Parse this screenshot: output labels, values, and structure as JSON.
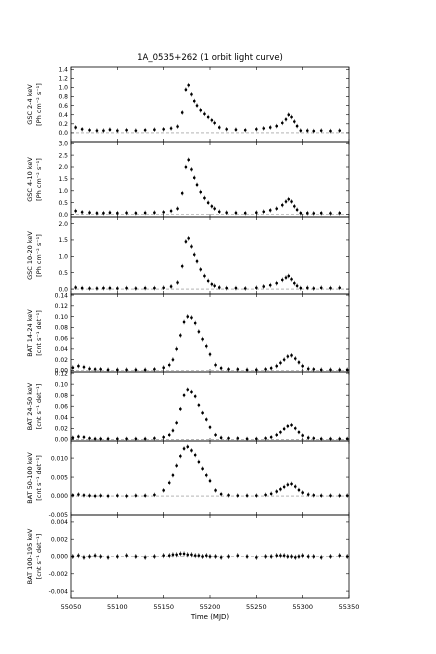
{
  "figure": {
    "title": "1A_0535+262 (1 orbit light curve)",
    "xlabel": "Time (MJD)",
    "xlim": [
      55050,
      55350
    ],
    "xticks": [
      "55050",
      "55100",
      "55150",
      "55200",
      "55250",
      "55300",
      "55350"
    ]
  },
  "chart_data": [
    {
      "type": "scatter",
      "ylabel": [
        "GSC 2-4 keV",
        "[Ph cm⁻² s⁻¹]"
      ],
      "ylim": [
        -0.2,
        1.45
      ],
      "yticks": [
        "0.0",
        "0.2",
        "0.4",
        "0.6",
        "0.8",
        "1.0",
        "1.2",
        "1.4"
      ],
      "ytick_values": [
        0.0,
        0.2,
        0.4,
        0.6,
        0.8,
        1.0,
        1.2,
        1.4
      ],
      "zero_line": true,
      "series": [
        {
          "x": [
            55055,
            55062,
            55070,
            55078,
            55085,
            55092,
            55100,
            55110,
            55120,
            55130,
            55140,
            55150,
            55158,
            55165,
            55170,
            55174,
            55177,
            55180,
            55183,
            55186,
            55190,
            55194,
            55198,
            55202,
            55205,
            55210,
            55218,
            55228,
            55238,
            55250,
            55258,
            55265,
            55272,
            55278,
            55282,
            55285,
            55288,
            55291,
            55294,
            55298,
            55305,
            55312,
            55320,
            55330,
            55340
          ],
          "y": [
            0.12,
            0.08,
            0.06,
            0.05,
            0.05,
            0.07,
            0.05,
            0.06,
            0.05,
            0.06,
            0.07,
            0.08,
            0.1,
            0.14,
            0.45,
            0.95,
            1.05,
            0.85,
            0.7,
            0.6,
            0.5,
            0.42,
            0.35,
            0.28,
            0.22,
            0.12,
            0.08,
            0.07,
            0.06,
            0.08,
            0.1,
            0.12,
            0.15,
            0.22,
            0.3,
            0.4,
            0.35,
            0.25,
            0.15,
            0.05,
            0.05,
            0.04,
            0.05,
            0.04,
            0.05
          ]
        }
      ]
    },
    {
      "type": "scatter",
      "ylabel": [
        "GSC 4-10 keV",
        "[Ph cm⁻² s⁻¹]"
      ],
      "ylim": [
        -0.1,
        3.05
      ],
      "yticks": [
        "0.0",
        "0.5",
        "1.0",
        "1.5",
        "2.0",
        "2.5",
        "3.0"
      ],
      "ytick_values": [
        0.0,
        0.5,
        1.0,
        1.5,
        2.0,
        2.5,
        3.0
      ],
      "zero_line": true,
      "series": [
        {
          "x": [
            55055,
            55062,
            55070,
            55078,
            55085,
            55092,
            55100,
            55110,
            55120,
            55130,
            55140,
            55150,
            55158,
            55165,
            55170,
            55174,
            55177,
            55180,
            55183,
            55186,
            55190,
            55194,
            55198,
            55202,
            55205,
            55210,
            55218,
            55228,
            55238,
            55250,
            55258,
            55265,
            55272,
            55278,
            55282,
            55285,
            55288,
            55291,
            55294,
            55298,
            55305,
            55312,
            55320,
            55330,
            55340
          ],
          "y": [
            0.15,
            0.1,
            0.08,
            0.06,
            0.06,
            0.08,
            0.06,
            0.07,
            0.06,
            0.07,
            0.08,
            0.1,
            0.15,
            0.25,
            0.9,
            2.0,
            2.3,
            1.9,
            1.55,
            1.25,
            0.95,
            0.7,
            0.5,
            0.35,
            0.25,
            0.12,
            0.08,
            0.07,
            0.06,
            0.08,
            0.12,
            0.18,
            0.25,
            0.4,
            0.55,
            0.65,
            0.55,
            0.35,
            0.2,
            0.06,
            0.06,
            0.05,
            0.06,
            0.05,
            0.06
          ]
        }
      ]
    },
    {
      "type": "scatter",
      "ylabel": [
        "GSC 10-20 keV",
        "[Ph cm⁻² s⁻¹]"
      ],
      "ylim": [
        -0.15,
        2.2
      ],
      "yticks": [
        "0.0",
        "0.5",
        "1.0",
        "1.5",
        "2.0"
      ],
      "ytick_values": [
        0.0,
        0.5,
        1.0,
        1.5,
        2.0
      ],
      "zero_line": true,
      "series": [
        {
          "x": [
            55055,
            55062,
            55070,
            55078,
            55085,
            55092,
            55100,
            55110,
            55120,
            55130,
            55140,
            55150,
            55158,
            55165,
            55170,
            55174,
            55177,
            55180,
            55183,
            55186,
            55190,
            55194,
            55198,
            55202,
            55205,
            55210,
            55218,
            55228,
            55238,
            55250,
            55258,
            55265,
            55272,
            55278,
            55282,
            55285,
            55288,
            55291,
            55294,
            55298,
            55305,
            55312,
            55320,
            55330,
            55340
          ],
          "y": [
            0.05,
            0.03,
            0.02,
            0.02,
            0.03,
            0.03,
            0.02,
            0.03,
            0.02,
            0.03,
            0.03,
            0.04,
            0.08,
            0.2,
            0.7,
            1.45,
            1.55,
            1.3,
            1.05,
            0.85,
            0.6,
            0.4,
            0.25,
            0.15,
            0.1,
            0.05,
            0.03,
            0.03,
            0.02,
            0.04,
            0.08,
            0.12,
            0.18,
            0.28,
            0.35,
            0.4,
            0.3,
            0.18,
            0.1,
            0.03,
            0.04,
            0.02,
            0.04,
            0.03,
            0.04
          ]
        }
      ]
    },
    {
      "type": "scatter",
      "ylabel": [
        "BAT 14-24 keV",
        "[cnt s⁻¹ det⁻¹]"
      ],
      "ylim": [
        -0.003,
        0.142
      ],
      "yticks": [
        "0.00",
        "0.02",
        "0.04",
        "0.06",
        "0.08",
        "0.10",
        "0.12",
        "0.14"
      ],
      "ytick_values": [
        0.0,
        0.02,
        0.04,
        0.06,
        0.08,
        0.1,
        0.12,
        0.14
      ],
      "zero_line": true,
      "series": [
        {
          "x": [
            55052,
            55058,
            55064,
            55070,
            55076,
            55082,
            55090,
            55100,
            55110,
            55120,
            55130,
            55140,
            55150,
            55156,
            55160,
            55164,
            55168,
            55172,
            55176,
            55180,
            55184,
            55188,
            55192,
            55196,
            55200,
            55206,
            55212,
            55220,
            55230,
            55240,
            55250,
            55260,
            55266,
            55272,
            55276,
            55280,
            55284,
            55288,
            55292,
            55296,
            55300,
            55306,
            55312,
            55320,
            55330,
            55340,
            55348
          ],
          "y": [
            0.005,
            0.008,
            0.006,
            0.003,
            0.002,
            0.002,
            0.001,
            0.001,
            0.001,
            0.001,
            0.001,
            0.002,
            0.005,
            0.01,
            0.02,
            0.04,
            0.065,
            0.09,
            0.1,
            0.098,
            0.088,
            0.072,
            0.058,
            0.045,
            0.03,
            0.01,
            0.004,
            0.002,
            0.002,
            0.001,
            0.001,
            0.002,
            0.004,
            0.008,
            0.014,
            0.02,
            0.026,
            0.028,
            0.022,
            0.015,
            0.008,
            0.003,
            0.002,
            0.001,
            0.001,
            0.001,
            0.001
          ]
        }
      ]
    },
    {
      "type": "scatter",
      "ylabel": [
        "BAT 24-50 keV",
        "[cnt s⁻¹ det⁻¹]"
      ],
      "ylim": [
        -0.003,
        0.122
      ],
      "yticks": [
        "0.00",
        "0.02",
        "0.04",
        "0.06",
        "0.08",
        "0.10",
        "0.12"
      ],
      "ytick_values": [
        0.0,
        0.02,
        0.04,
        0.06,
        0.08,
        0.1,
        0.12
      ],
      "zero_line": true,
      "series": [
        {
          "x": [
            55052,
            55058,
            55064,
            55070,
            55076,
            55082,
            55090,
            55100,
            55110,
            55120,
            55130,
            55140,
            55150,
            55156,
            55160,
            55164,
            55168,
            55172,
            55176,
            55180,
            55184,
            55188,
            55192,
            55196,
            55200,
            55206,
            55212,
            55220,
            55230,
            55240,
            55250,
            55260,
            55266,
            55272,
            55276,
            55280,
            55284,
            55288,
            55292,
            55296,
            55300,
            55306,
            55312,
            55320,
            55330,
            55340,
            55348
          ],
          "y": [
            0.003,
            0.005,
            0.004,
            0.002,
            0.001,
            0.001,
            0.001,
            0.001,
            0.001,
            0.001,
            0.001,
            0.002,
            0.004,
            0.008,
            0.016,
            0.03,
            0.055,
            0.08,
            0.09,
            0.086,
            0.078,
            0.062,
            0.048,
            0.036,
            0.022,
            0.008,
            0.003,
            0.002,
            0.002,
            0.001,
            0.001,
            0.002,
            0.004,
            0.008,
            0.013,
            0.019,
            0.024,
            0.026,
            0.02,
            0.013,
            0.007,
            0.003,
            0.002,
            0.001,
            0.001,
            0.001,
            0.001
          ]
        }
      ]
    },
    {
      "type": "scatter",
      "ylabel": [
        "BAT 50-100 keV",
        "[cnt s⁻¹ det⁻¹]"
      ],
      "ylim": [
        -0.005,
        0.0145
      ],
      "yticks": [
        "-0.005",
        "0.000",
        "0.005",
        "0.010"
      ],
      "ytick_values": [
        -0.005,
        0.0,
        0.005,
        0.01
      ],
      "zero_line": true,
      "series": [
        {
          "x": [
            55052,
            55058,
            55064,
            55070,
            55076,
            55082,
            55090,
            55100,
            55110,
            55120,
            55130,
            55140,
            55150,
            55156,
            55160,
            55164,
            55168,
            55172,
            55176,
            55180,
            55184,
            55188,
            55192,
            55196,
            55200,
            55206,
            55212,
            55220,
            55230,
            55240,
            55250,
            55260,
            55266,
            55272,
            55276,
            55280,
            55284,
            55288,
            55292,
            55296,
            55300,
            55306,
            55312,
            55320,
            55330,
            55340,
            55348
          ],
          "y": [
            0.0002,
            0.0004,
            0.0002,
            0.0001,
            0.0,
            0.0001,
            0.0,
            0.0001,
            0.0,
            0.0001,
            0.0001,
            0.0003,
            0.0015,
            0.0035,
            0.0055,
            0.008,
            0.0105,
            0.0125,
            0.013,
            0.012,
            0.0108,
            0.009,
            0.0072,
            0.0055,
            0.004,
            0.0015,
            0.0005,
            0.0002,
            0.0001,
            0.0001,
            0.0001,
            0.0003,
            0.0006,
            0.0012,
            0.0018,
            0.0024,
            0.003,
            0.0032,
            0.0025,
            0.0016,
            0.0009,
            0.0004,
            0.0002,
            0.0001,
            0.0001,
            0.0001,
            0.0001
          ]
        }
      ]
    },
    {
      "type": "scatter",
      "ylabel": [
        "BAT 100-195 keV",
        "[cnt s⁻¹ det⁻¹]"
      ],
      "ylim": [
        -0.0048,
        0.0048
      ],
      "yticks": [
        "-0.004",
        "-0.002",
        "0.000",
        "0.002",
        "0.004"
      ],
      "ytick_values": [
        -0.004,
        -0.002,
        0.0,
        0.002,
        0.004
      ],
      "zero_line": true,
      "series": [
        {
          "x": [
            55052,
            55058,
            55064,
            55070,
            55076,
            55082,
            55090,
            55100,
            55110,
            55120,
            55130,
            55140,
            55150,
            55156,
            55160,
            55164,
            55168,
            55172,
            55176,
            55180,
            55184,
            55188,
            55192,
            55196,
            55200,
            55206,
            55212,
            55220,
            55230,
            55240,
            55250,
            55260,
            55266,
            55272,
            55276,
            55280,
            55284,
            55288,
            55292,
            55296,
            55300,
            55306,
            55312,
            55320,
            55330,
            55340,
            55348
          ],
          "y": [
            0.0,
            0.0001,
            -0.0001,
            0.0,
            0.0001,
            0.0,
            -0.0001,
            0.0,
            0.0001,
            0.0,
            -0.0001,
            0.0,
            0.0001,
            0.0001,
            0.0002,
            0.0002,
            0.0003,
            0.0003,
            0.0002,
            0.0002,
            0.0001,
            0.0001,
            0.0,
            0.0001,
            0.0,
            0.0,
            -0.0001,
            0.0,
            0.0001,
            0.0,
            -0.0001,
            0.0,
            0.0,
            0.0001,
            0.0001,
            0.0001,
            0.0,
            0.0,
            -0.0001,
            0.0,
            0.0001,
            0.0,
            0.0,
            -0.0001,
            0.0,
            0.0001,
            0.0
          ]
        }
      ]
    }
  ]
}
